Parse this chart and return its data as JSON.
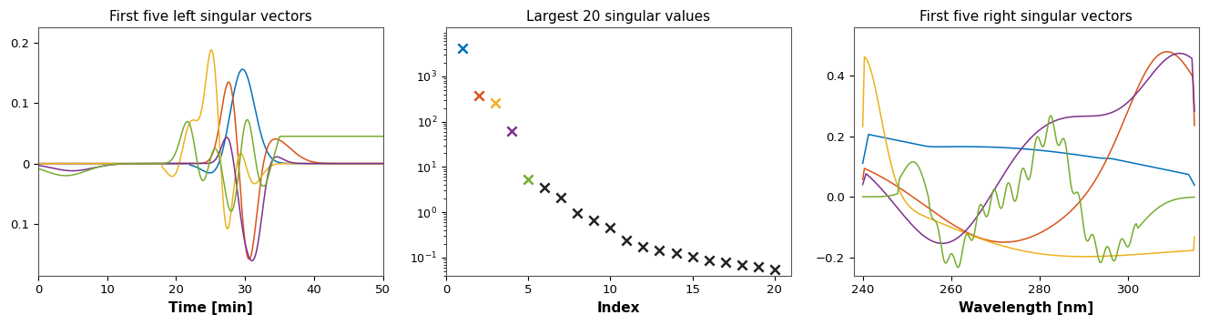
{
  "title1": "First five left singular vectors",
  "title2": "Largest 20 singular values",
  "title3": "First five right singular vectors",
  "xlabel1": "Time [min]",
  "xlabel2": "Index",
  "xlabel3": "Wavelength [nm]",
  "ylim1": [
    -0.185,
    0.225
  ],
  "yticks1": [
    -0.1,
    0,
    0.1,
    0.2
  ],
  "xlim1": [
    0,
    50
  ],
  "xticks1": [
    0,
    10,
    20,
    30,
    40,
    50
  ],
  "ylim3": [
    -0.26,
    0.56
  ],
  "yticks3": [
    -0.2,
    0,
    0.2,
    0.4
  ],
  "xlim3": [
    238,
    316
  ],
  "xticks3": [
    240,
    260,
    280,
    300
  ],
  "sv_colors": [
    "#0072BD",
    "#D95319",
    "#EDB120",
    "#7E2F8E",
    "#77AC30"
  ],
  "sv_values": [
    4200,
    380,
    260,
    62,
    5.2,
    3.5,
    2.1,
    0.95,
    0.65,
    0.45,
    0.24,
    0.175,
    0.145,
    0.125,
    0.105,
    0.088,
    0.078,
    0.068,
    0.062,
    0.055
  ],
  "background_color": "#ffffff",
  "line_colors": [
    "#0072BD",
    "#D95319",
    "#EDB120",
    "#7E2F8E",
    "#77AC30"
  ],
  "dark_color": "#222222"
}
